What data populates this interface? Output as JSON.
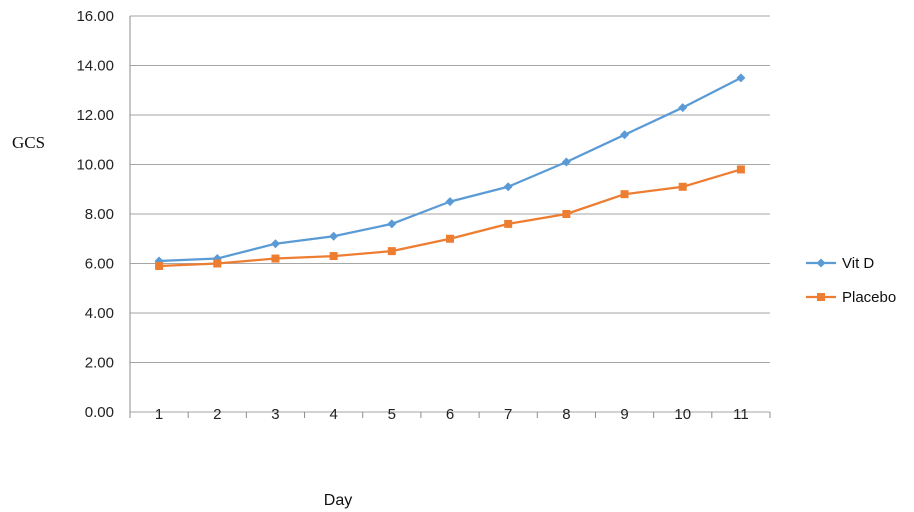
{
  "chart_data": {
    "type": "line",
    "title": "",
    "xlabel": "Day",
    "ylabel": "GCS",
    "x": [
      1,
      2,
      3,
      4,
      5,
      6,
      7,
      8,
      9,
      10,
      11
    ],
    "ylim": [
      0,
      16
    ],
    "yticks": [
      "0.00",
      "2.00",
      "4.00",
      "6.00",
      "8.00",
      "10.00",
      "12.00",
      "14.00",
      "16.00"
    ],
    "grid": true,
    "legend_position": "right",
    "series": [
      {
        "name": "Vit D",
        "color": "#5b9bd5",
        "marker": "diamond",
        "values": [
          6.1,
          6.2,
          6.8,
          7.1,
          7.6,
          8.5,
          9.1,
          10.1,
          11.2,
          12.3,
          13.5
        ]
      },
      {
        "name": "Placebo",
        "color": "#ed7d31",
        "marker": "square",
        "values": [
          5.9,
          6.0,
          6.2,
          6.3,
          6.5,
          7.0,
          7.6,
          8.0,
          8.8,
          9.1,
          9.8
        ]
      }
    ]
  }
}
